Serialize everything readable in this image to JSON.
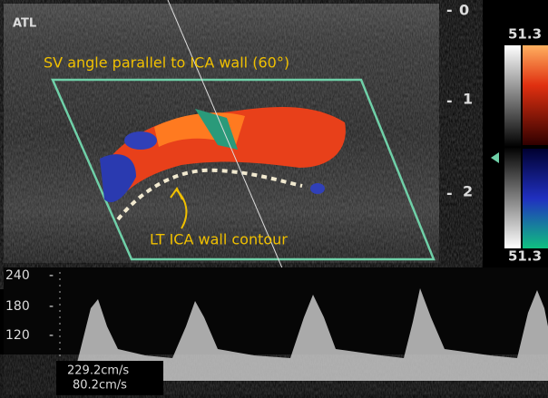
{
  "header": {
    "logo": "ATL"
  },
  "annotations": {
    "angle": "SV angle parallel to ICA wall (60°)",
    "contour": "LT ICA wall contour"
  },
  "depth_scale": [
    "0",
    "1",
    "2"
  ],
  "color_bar": {
    "top": "51.3",
    "bottom": "51.3"
  },
  "velocity_scale": [
    "240",
    "180",
    "120"
  ],
  "readouts": [
    "229.2cm/s",
    "80.2cm/s"
  ]
}
